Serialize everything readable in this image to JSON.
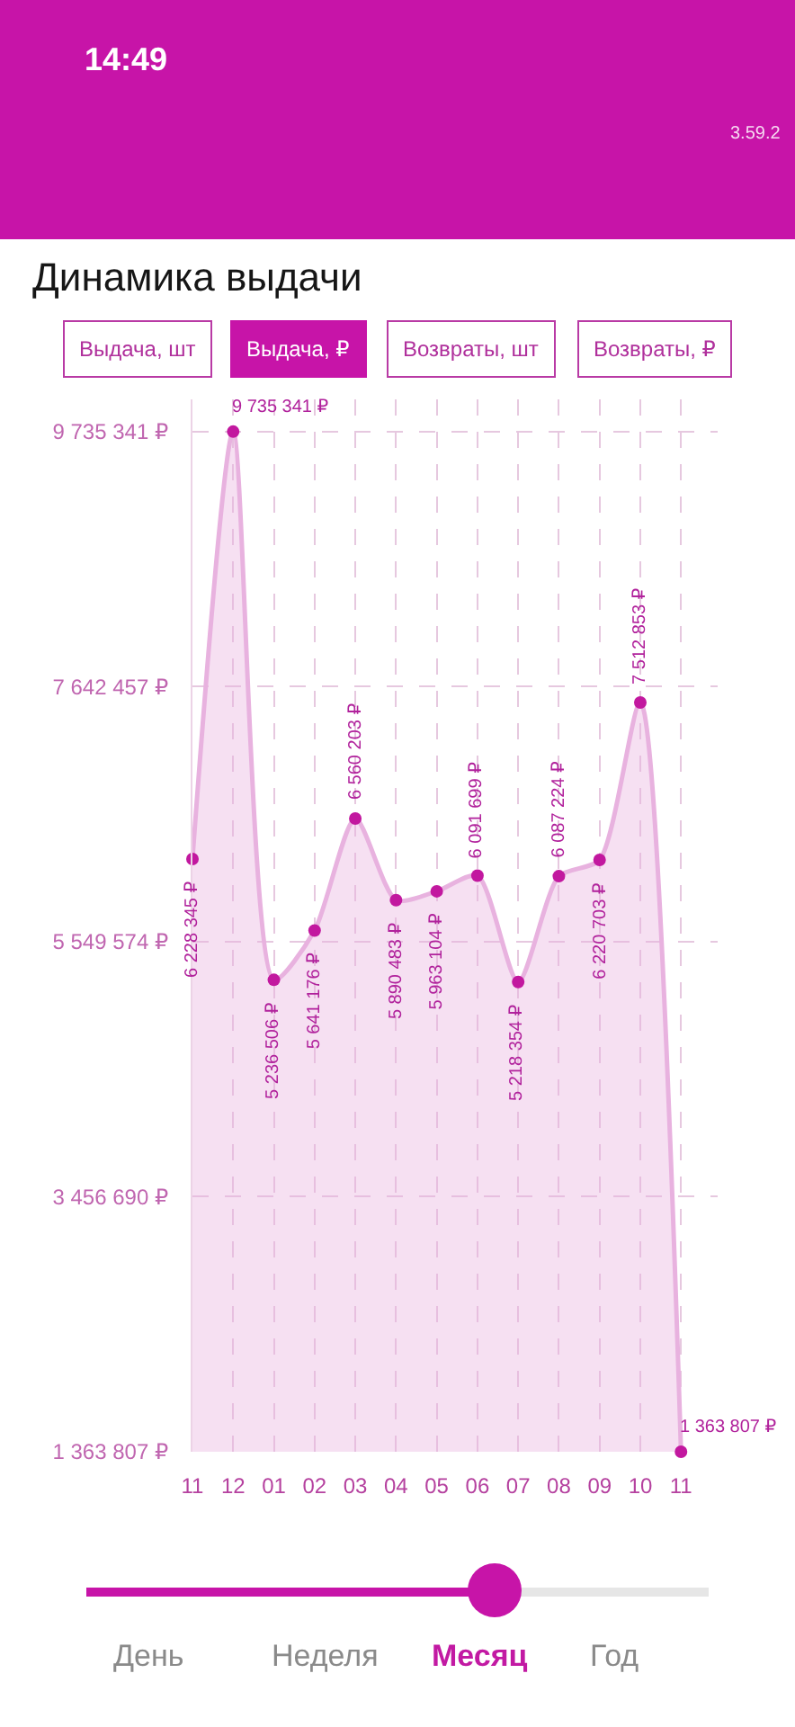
{
  "chart_data": {
    "type": "area",
    "title": "Динамика выдачи",
    "categories": [
      "11",
      "12",
      "01",
      "02",
      "03",
      "04",
      "05",
      "06",
      "07",
      "08",
      "09",
      "10",
      "11"
    ],
    "series": [
      {
        "color": "#e8b2df",
        "colors": [
          "#c2189f",
          "#c2189f",
          "#c2189f",
          "#c2189f",
          "#c2189f",
          "#c2189f",
          "#c2189f",
          "#c2189f",
          "#c2189f",
          "#c2189f",
          "#c2189f",
          "#c2189f",
          "#c2189f"
        ],
        "values": [
          6228345,
          9735341,
          5236506,
          5641176,
          6560203,
          5890483,
          5963104,
          6091699,
          5218354,
          6087224,
          6220703,
          7512853,
          1363807
        ],
        "value_labels": [
          "6 228 345 ₽",
          "9 735 341 ₽",
          "5 236 506 ₽",
          "5 641 176 ₽",
          "6 560 203 ₽",
          "5 890 483 ₽",
          "5 963 104 ₽",
          "6 091 699 ₽",
          "5 218 354 ₽",
          "6 087 224 ₽",
          "6 220 703 ₽",
          "7 512 853 ₽",
          "1 363 807 ₽"
        ]
      }
    ],
    "ylim": [
      1363807,
      10000000
    ],
    "yticks": [
      {
        "value": 1363807,
        "label": "1 363 807 ₽"
      },
      {
        "value": 3456690,
        "label": "3 456 690 ₽"
      },
      {
        "value": 5549574,
        "label": "5 549 574 ₽"
      },
      {
        "value": 7642457,
        "label": "7 642 457 ₽"
      },
      {
        "value": 9735341,
        "label": "9 735 341 ₽"
      }
    ],
    "grid": true,
    "marker": "circle",
    "line_style": "solid",
    "annotations": [
      "14:49",
      "3.59.2",
      "Выдача, шт",
      "Выдача, ₽",
      "Возвраты, шт",
      "Возвраты, ₽",
      "День",
      "Неделя",
      "Месяц",
      "Год"
    ]
  }
}
